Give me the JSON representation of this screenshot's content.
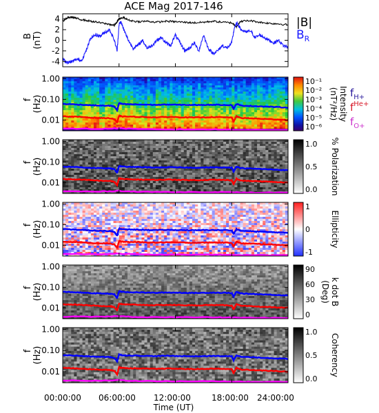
{
  "title": "ACE Mag 2017-146",
  "colors": {
    "total_b": "#000000",
    "b_r": "#1a1aff",
    "f_h": "#0000ff",
    "f_he": "#ff0000",
    "f_o": "#ff00ff",
    "f_h_label": "#2a1a9c",
    "f_he_label": "#d81b2a",
    "f_o_label": "#cc33cc"
  },
  "legend": {
    "total_b": "|B|",
    "b_r": "B",
    "b_r_sub": "R",
    "f_h": "f",
    "f_h_sup": "H+",
    "f_he": "f",
    "f_he_sup": "He+",
    "f_o": "f",
    "f_o_sup": "O+"
  },
  "x_axis": {
    "label": "Time (UT)",
    "ticks": [
      "00:00:00",
      "06:00:00",
      "12:00:00",
      "18:00:00",
      "24:00:00"
    ],
    "range_hours": [
      0,
      24
    ]
  },
  "panels": [
    {
      "id": "b-field",
      "ylabel": "B",
      "yunit": "(nT)",
      "yticks": [
        "4",
        "2",
        "0",
        "-2",
        "-4"
      ]
    },
    {
      "id": "intensity",
      "ylabel": "f",
      "yunit": "(Hz)",
      "yticks": [
        "1.00",
        "0.10",
        "0.01"
      ],
      "colorbar_title": "Intensity",
      "colorbar_unit": "(nT²/Hz)",
      "colorbar_ticks": [
        "10⁻¹",
        "10⁻²",
        "10⁻³",
        "10⁻⁴",
        "10⁻⁵",
        "10⁻⁶"
      ]
    },
    {
      "id": "polarization",
      "ylabel": "f",
      "yunit": "(Hz)",
      "yticks": [
        "1.00",
        "0.10",
        "0.01"
      ],
      "colorbar_title": "% Polarization",
      "colorbar_ticks": [
        "1.0",
        "0.5",
        "0.0"
      ]
    },
    {
      "id": "ellipticity",
      "ylabel": "f",
      "yunit": "(Hz)",
      "yticks": [
        "1.00",
        "0.10",
        "0.01"
      ],
      "colorbar_title": "Ellipticity",
      "colorbar_ticks": [
        "1",
        "0",
        "-1"
      ]
    },
    {
      "id": "k-dot-b",
      "ylabel": "f",
      "yunit": "(Hz)",
      "yticks": [
        "1.00",
        "0.10",
        "0.01"
      ],
      "colorbar_title": "k dot B",
      "colorbar_unit": "(Deg)",
      "colorbar_ticks": [
        "90",
        "60",
        "30",
        "0"
      ]
    },
    {
      "id": "coherency",
      "ylabel": "f",
      "yunit": "(Hz)",
      "yticks": [
        "1.00",
        "0.10",
        "0.01"
      ],
      "colorbar_title": "Coherency",
      "colorbar_ticks": [
        "1.0",
        "0.5",
        "0.0"
      ]
    }
  ],
  "chart_data": [
    {
      "type": "line",
      "panel": "b-field",
      "x_unit": "hours UT",
      "ylim": [
        -5,
        5
      ],
      "series": [
        {
          "name": "|B|",
          "color": "#000000",
          "x": [
            0,
            0.5,
            1,
            1.5,
            2,
            3,
            4,
            5,
            5.5,
            6,
            6.5,
            7,
            8,
            9,
            10,
            11,
            12,
            13,
            14,
            15,
            16,
            17,
            18,
            18.5,
            19,
            20,
            21,
            22,
            23,
            24
          ],
          "y": [
            3.6,
            4.2,
            4.4,
            4.1,
            3.9,
            3.6,
            3.3,
            3.0,
            2.8,
            4.0,
            4.3,
            3.8,
            3.5,
            3.6,
            3.4,
            3.6,
            3.5,
            3.4,
            3.3,
            3.4,
            3.6,
            3.4,
            3.3,
            2.6,
            3.6,
            3.7,
            3.4,
            3.2,
            3.1,
            2.9
          ]
        },
        {
          "name": "B",
          "color": "#1a1aff",
          "x": [
            0,
            0.3,
            0.6,
            1,
            1.5,
            2,
            2.5,
            3,
            3.5,
            4,
            4.5,
            5,
            5.5,
            5.8,
            6,
            6.2,
            6.5,
            7,
            7.5,
            8,
            8.5,
            9,
            9.5,
            10,
            10.5,
            11,
            11.5,
            12,
            12.5,
            13,
            13.5,
            14,
            14.5,
            15,
            15.5,
            16,
            16.5,
            17,
            17.5,
            18,
            18.3,
            18.6,
            19,
            19.5,
            20,
            20.5,
            21,
            21.5,
            22,
            22.5,
            23,
            23.5,
            24
          ],
          "y": [
            -3.5,
            -4.0,
            -4.2,
            -4.0,
            -3.6,
            -3.8,
            -2.0,
            0.5,
            1.0,
            0.8,
            1.5,
            2.0,
            0.0,
            -2.0,
            3.0,
            3.5,
            2.0,
            0.0,
            -1.5,
            -1.0,
            0.0,
            -1.5,
            -1.0,
            0.0,
            0.5,
            -0.5,
            -1.0,
            1.0,
            -0.5,
            -2.0,
            -1.5,
            -0.5,
            -2.0,
            1.0,
            -1.5,
            -2.5,
            -2.0,
            -1.0,
            -1.5,
            -0.5,
            2.5,
            3.2,
            2.0,
            1.5,
            1.8,
            0.5,
            1.0,
            0.5,
            0.0,
            -0.5,
            0.0,
            -1.0,
            -1.3
          ]
        }
      ]
    },
    {
      "type": "line",
      "panel": "spectral-panels",
      "x_unit": "hours UT",
      "ylim": [
        0.003,
        1.2
      ],
      "y_scale": "log",
      "series": [
        {
          "name": "fH+",
          "color": "#0000ff",
          "x": [
            0,
            1,
            2,
            3,
            4,
            5,
            5.5,
            5.8,
            6,
            6.3,
            7,
            8,
            9,
            10,
            11,
            12,
            13,
            14,
            15,
            16,
            17,
            18,
            18.2,
            18.5,
            19,
            20,
            21,
            22,
            23,
            24
          ],
          "y": [
            0.06,
            0.058,
            0.055,
            0.052,
            0.05,
            0.049,
            0.045,
            0.03,
            0.065,
            0.06,
            0.058,
            0.057,
            0.055,
            0.054,
            0.056,
            0.055,
            0.054,
            0.053,
            0.054,
            0.055,
            0.054,
            0.053,
            0.035,
            0.06,
            0.05,
            0.048,
            0.046,
            0.044,
            0.042,
            0.04
          ]
        },
        {
          "name": "fHe+",
          "color": "#ff0000",
          "x": [
            0,
            1,
            2,
            3,
            4,
            5,
            5.5,
            5.8,
            6,
            6.3,
            7,
            8,
            9,
            10,
            11,
            12,
            13,
            14,
            15,
            16,
            17,
            18,
            18.2,
            18.5,
            19,
            20,
            21,
            22,
            23,
            24
          ],
          "y": [
            0.015,
            0.0145,
            0.014,
            0.013,
            0.0125,
            0.0122,
            0.011,
            0.0075,
            0.016,
            0.015,
            0.0145,
            0.0142,
            0.0138,
            0.0135,
            0.014,
            0.0138,
            0.0135,
            0.0132,
            0.0135,
            0.0138,
            0.0135,
            0.0132,
            0.0085,
            0.015,
            0.0125,
            0.012,
            0.0115,
            0.011,
            0.0105,
            0.01
          ]
        },
        {
          "name": "fO+",
          "color": "#ff00ff",
          "x": [
            0,
            4,
            6,
            8,
            12,
            16,
            18,
            20,
            24
          ],
          "y": [
            0.0038,
            0.0037,
            0.004,
            0.0036,
            0.0035,
            0.0035,
            0.0034,
            0.0033,
            0.0033
          ]
        }
      ]
    }
  ]
}
